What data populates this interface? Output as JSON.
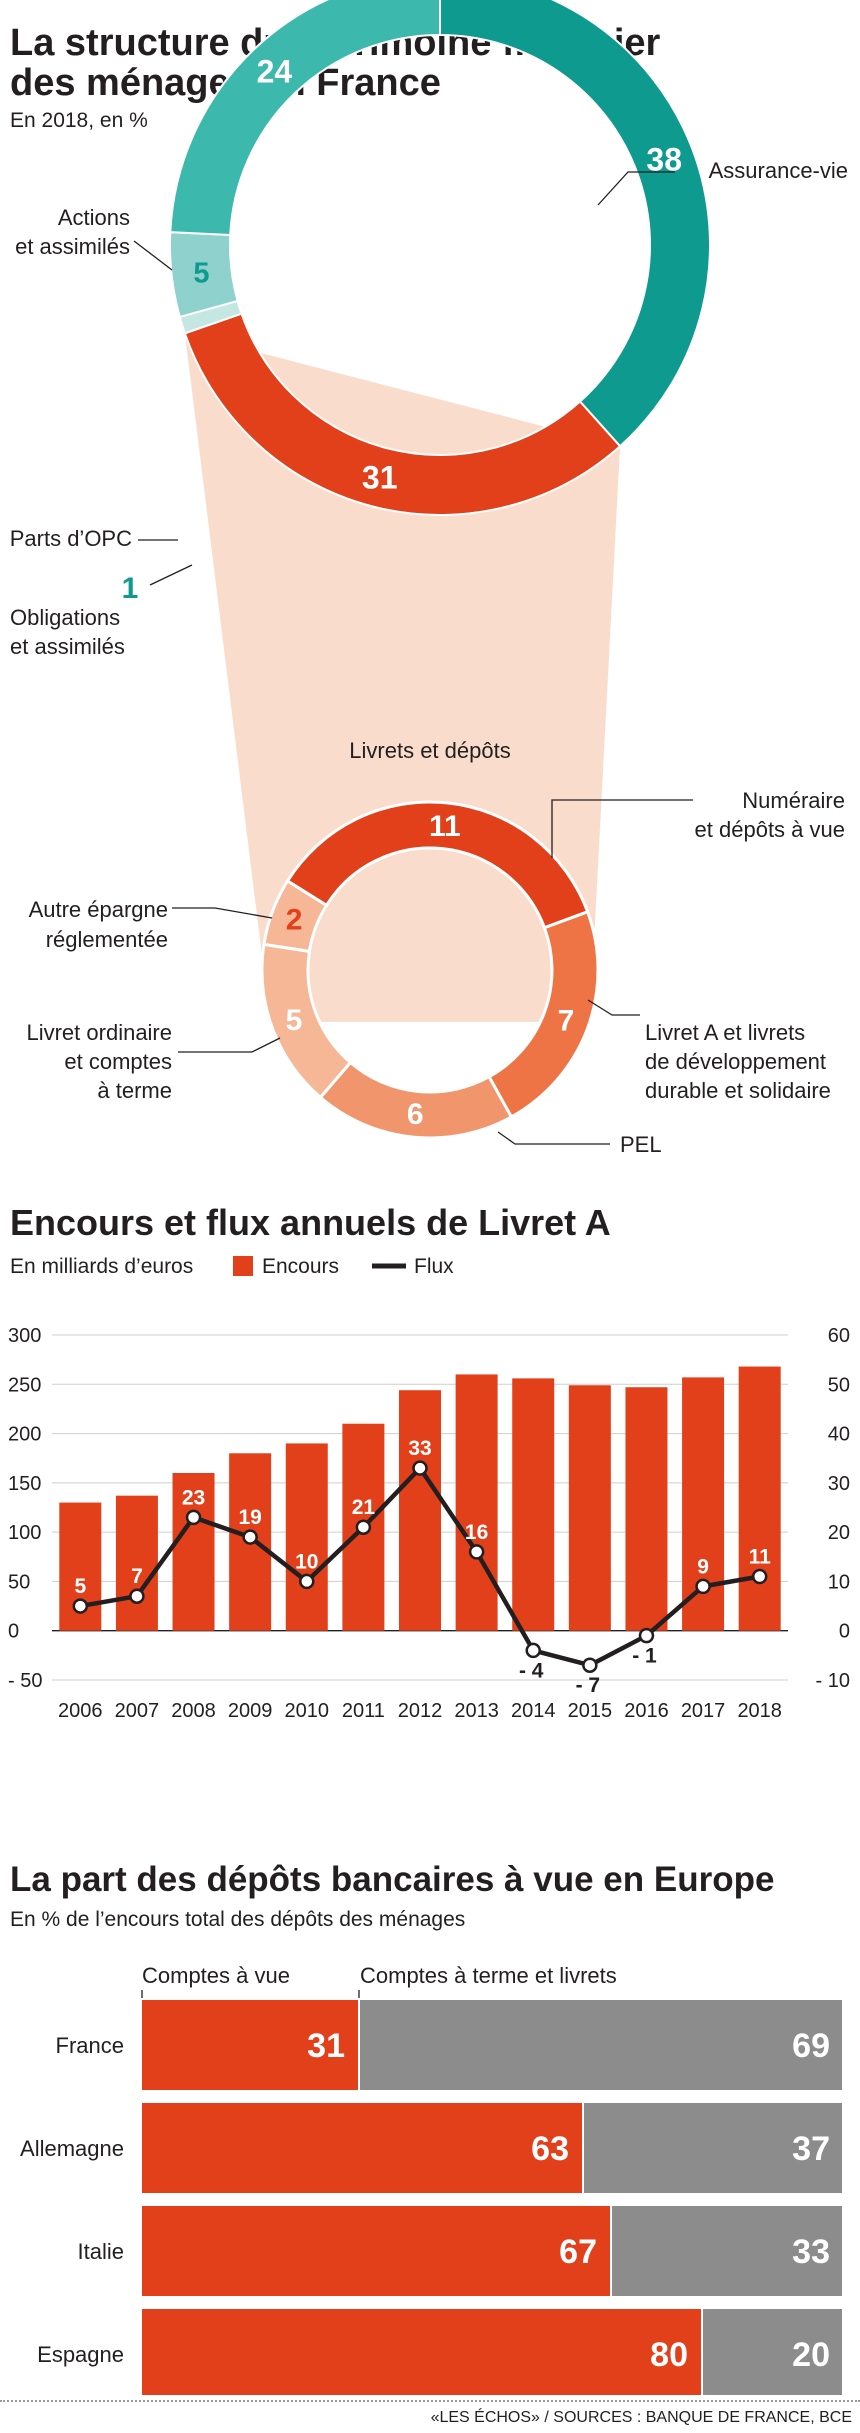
{
  "colors": {
    "teal_dark": "#0f9a8f",
    "teal_mid": "#3db8ad",
    "teal_light": "#8fd1cc",
    "teal_pale": "#c4e7e4",
    "red": "#e1401b",
    "orange": "#ee7446",
    "salmon": "#f1956c",
    "peach": "#f6b796",
    "funnel": "#f9dccb",
    "gray": "#8c8c8c",
    "text": "#231f20"
  },
  "chart_data": [
    {
      "type": "pie",
      "title": "La structure du patrimoine financier des ménages en France",
      "title_line1": "La structure du patrimoine financier",
      "title_line2": "des ménages en France",
      "subtitle": "En 2018, en %",
      "outer": {
        "slices": [
          {
            "label": "Assurance-vie",
            "value": 38,
            "value_label": "38"
          },
          {
            "label_line1": "Livrets et dépôts",
            "label": "Livrets et dépôts",
            "value": 31,
            "value_label": "31"
          },
          {
            "label_line1": "Obligations",
            "label_line2": "et assimilés",
            "label": "Obligations et assimilés",
            "value": 1,
            "value_label": "1"
          },
          {
            "label": "Parts d’OPC",
            "value": 5,
            "value_label": "5"
          },
          {
            "label_line1": "Actions",
            "label_line2": "et assimilés",
            "label": "Actions et assimilés",
            "value": 24,
            "value_label": "24"
          }
        ]
      },
      "inner": {
        "title": "Livrets et dépôts",
        "slices": [
          {
            "label_line1": "Numéraire",
            "label_line2": "et dépôts à vue",
            "value": 11,
            "value_label": "11"
          },
          {
            "label_line1": "Livret A et livrets",
            "label_line2": "de développement",
            "label_line3": "durable et solidaire",
            "value": 7,
            "value_label": "7"
          },
          {
            "label_line1": "PEL",
            "value": 6,
            "value_label": "6"
          },
          {
            "label_line1": "Livret ordinaire",
            "label_line2": "et comptes",
            "label_line3": "à terme",
            "value": 5,
            "value_label": "5"
          },
          {
            "label_line1": "Autre épargne",
            "label_line2": "réglementée",
            "value": 2,
            "value_label": "2"
          }
        ]
      }
    },
    {
      "type": "bar",
      "title": "Encours et flux annuels de Livret A",
      "subtitle": "En milliards d’euros",
      "legend": {
        "bar": "Encours",
        "line": "Flux"
      },
      "categories": [
        "2006",
        "2007",
        "2008",
        "2009",
        "2010",
        "2011",
        "2012",
        "2013",
        "2014",
        "2015",
        "2016",
        "2017",
        "2018"
      ],
      "series": [
        {
          "name": "Encours",
          "type": "bar",
          "axis": "left",
          "values": [
            130,
            137,
            160,
            180,
            190,
            210,
            244,
            260,
            256,
            249,
            247,
            257,
            268
          ]
        },
        {
          "name": "Flux",
          "type": "line",
          "axis": "right",
          "values": [
            5,
            7,
            23,
            19,
            10,
            21,
            33,
            16,
            -4,
            -7,
            -1,
            9,
            11
          ],
          "value_labels": [
            "5",
            "7",
            "23",
            "19",
            "10",
            "21",
            "33",
            "16",
            "- 4",
            "- 7",
            "- 1",
            "9",
            "11"
          ]
        }
      ],
      "left_axis": {
        "ylim": [
          -50,
          300
        ],
        "ticks": [
          "300",
          "250",
          "200",
          "150",
          "100",
          "50",
          "0",
          "- 50"
        ]
      },
      "right_axis": {
        "ylim": [
          -10,
          60
        ],
        "ticks": [
          "60",
          "50",
          "40",
          "30",
          "20",
          "10",
          "0",
          "- 10"
        ]
      }
    },
    {
      "type": "bar",
      "orientation": "horizontal-stacked",
      "title": "La part des dépôts bancaires à vue en Europe",
      "subtitle": "En % de l’encours total des dépôts des ménages",
      "categories": [
        "France",
        "Allemagne",
        "Italie",
        "Espagne"
      ],
      "series": [
        {
          "name": "Comptes à vue",
          "values": [
            31,
            63,
            67,
            80
          ]
        },
        {
          "name": "Comptes à terme et livrets",
          "values": [
            69,
            37,
            33,
            20
          ]
        }
      ]
    }
  ],
  "source": "«LES ÉCHOS» / SOURCES : BANQUE DE FRANCE, BCE"
}
